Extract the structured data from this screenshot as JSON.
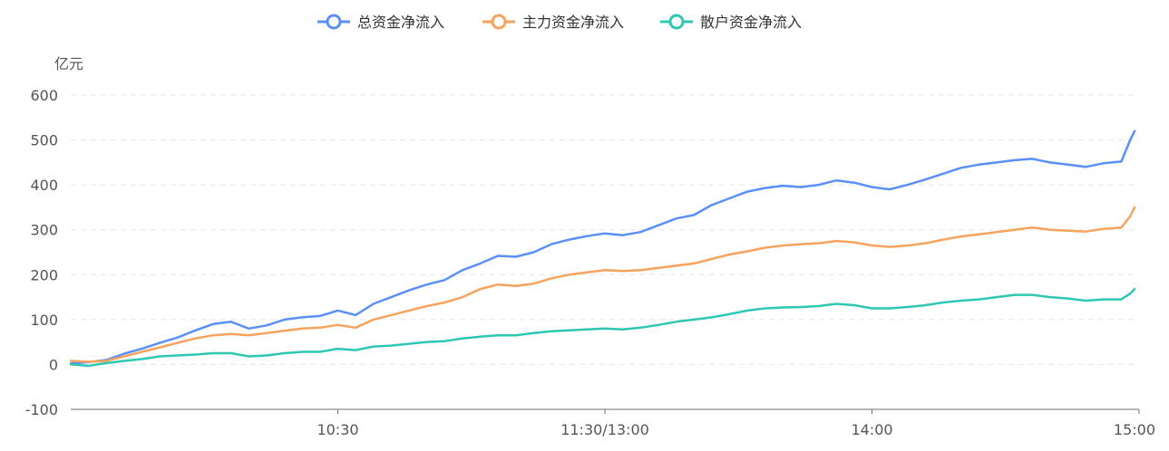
{
  "chart_data": {
    "type": "line",
    "y_unit_label": "亿元",
    "y_ticks": [
      600,
      500,
      400,
      300,
      200,
      100,
      0,
      -100
    ],
    "ylim": [
      -100,
      600
    ],
    "x_ticks": [
      "10:30",
      "11:30/13:00",
      "14:00",
      "15:00"
    ],
    "x_tick_minutes": [
      60,
      120,
      180,
      240
    ],
    "x_range_minutes": [
      0,
      240
    ],
    "grid": "horizontal-dashed",
    "legend_position": "top-center",
    "series": [
      {
        "name": "总资金净流入",
        "color": "#5b8ff9",
        "points": [
          [
            0,
            2
          ],
          [
            4,
            5
          ],
          [
            8,
            10
          ],
          [
            12,
            24
          ],
          [
            16,
            35
          ],
          [
            20,
            48
          ],
          [
            24,
            60
          ],
          [
            28,
            76
          ],
          [
            32,
            90
          ],
          [
            36,
            95
          ],
          [
            40,
            80
          ],
          [
            44,
            87
          ],
          [
            48,
            100
          ],
          [
            52,
            105
          ],
          [
            56,
            108
          ],
          [
            60,
            120
          ],
          [
            64,
            110
          ],
          [
            68,
            135
          ],
          [
            72,
            150
          ],
          [
            76,
            165
          ],
          [
            80,
            178
          ],
          [
            84,
            188
          ],
          [
            88,
            210
          ],
          [
            92,
            225
          ],
          [
            96,
            242
          ],
          [
            100,
            240
          ],
          [
            104,
            250
          ],
          [
            108,
            268
          ],
          [
            112,
            278
          ],
          [
            116,
            286
          ],
          [
            120,
            292
          ],
          [
            124,
            288
          ],
          [
            128,
            295
          ],
          [
            132,
            310
          ],
          [
            136,
            325
          ],
          [
            140,
            333
          ],
          [
            144,
            355
          ],
          [
            148,
            370
          ],
          [
            152,
            385
          ],
          [
            156,
            393
          ],
          [
            160,
            398
          ],
          [
            164,
            395
          ],
          [
            168,
            400
          ],
          [
            172,
            410
          ],
          [
            176,
            405
          ],
          [
            180,
            395
          ],
          [
            184,
            390
          ],
          [
            188,
            400
          ],
          [
            192,
            412
          ],
          [
            196,
            425
          ],
          [
            200,
            438
          ],
          [
            204,
            445
          ],
          [
            208,
            450
          ],
          [
            212,
            455
          ],
          [
            216,
            458
          ],
          [
            220,
            450
          ],
          [
            224,
            445
          ],
          [
            228,
            440
          ],
          [
            232,
            448
          ],
          [
            236,
            452
          ],
          [
            238,
            500
          ],
          [
            239,
            520
          ]
        ]
      },
      {
        "name": "主力资金净流入",
        "color": "#f7a35c",
        "points": [
          [
            0,
            8
          ],
          [
            4,
            6
          ],
          [
            8,
            8
          ],
          [
            12,
            18
          ],
          [
            16,
            28
          ],
          [
            20,
            38
          ],
          [
            24,
            48
          ],
          [
            28,
            58
          ],
          [
            32,
            65
          ],
          [
            36,
            68
          ],
          [
            40,
            65
          ],
          [
            44,
            70
          ],
          [
            48,
            75
          ],
          [
            52,
            80
          ],
          [
            56,
            82
          ],
          [
            60,
            88
          ],
          [
            64,
            82
          ],
          [
            68,
            100
          ],
          [
            72,
            110
          ],
          [
            76,
            120
          ],
          [
            80,
            130
          ],
          [
            84,
            138
          ],
          [
            88,
            150
          ],
          [
            92,
            168
          ],
          [
            96,
            178
          ],
          [
            100,
            175
          ],
          [
            104,
            180
          ],
          [
            108,
            192
          ],
          [
            112,
            200
          ],
          [
            116,
            205
          ],
          [
            120,
            210
          ],
          [
            124,
            208
          ],
          [
            128,
            210
          ],
          [
            132,
            215
          ],
          [
            136,
            220
          ],
          [
            140,
            225
          ],
          [
            144,
            235
          ],
          [
            148,
            245
          ],
          [
            152,
            252
          ],
          [
            156,
            260
          ],
          [
            160,
            265
          ],
          [
            164,
            268
          ],
          [
            168,
            270
          ],
          [
            172,
            275
          ],
          [
            176,
            272
          ],
          [
            180,
            265
          ],
          [
            184,
            262
          ],
          [
            188,
            265
          ],
          [
            192,
            270
          ],
          [
            196,
            278
          ],
          [
            200,
            285
          ],
          [
            204,
            290
          ],
          [
            208,
            295
          ],
          [
            212,
            300
          ],
          [
            216,
            305
          ],
          [
            220,
            300
          ],
          [
            224,
            298
          ],
          [
            228,
            296
          ],
          [
            232,
            302
          ],
          [
            236,
            305
          ],
          [
            238,
            330
          ],
          [
            239,
            350
          ]
        ]
      },
      {
        "name": "散户资金净流入",
        "color": "#2ec7b4",
        "points": [
          [
            0,
            0
          ],
          [
            4,
            -3
          ],
          [
            8,
            3
          ],
          [
            12,
            8
          ],
          [
            16,
            12
          ],
          [
            20,
            18
          ],
          [
            24,
            20
          ],
          [
            28,
            22
          ],
          [
            32,
            25
          ],
          [
            36,
            25
          ],
          [
            40,
            18
          ],
          [
            44,
            20
          ],
          [
            48,
            25
          ],
          [
            52,
            28
          ],
          [
            56,
            28
          ],
          [
            60,
            35
          ],
          [
            64,
            32
          ],
          [
            68,
            40
          ],
          [
            72,
            42
          ],
          [
            76,
            46
          ],
          [
            80,
            50
          ],
          [
            84,
            52
          ],
          [
            88,
            58
          ],
          [
            92,
            62
          ],
          [
            96,
            65
          ],
          [
            100,
            65
          ],
          [
            104,
            70
          ],
          [
            108,
            74
          ],
          [
            112,
            76
          ],
          [
            116,
            78
          ],
          [
            120,
            80
          ],
          [
            124,
            78
          ],
          [
            128,
            82
          ],
          [
            132,
            88
          ],
          [
            136,
            95
          ],
          [
            140,
            100
          ],
          [
            144,
            105
          ],
          [
            148,
            112
          ],
          [
            152,
            120
          ],
          [
            156,
            125
          ],
          [
            160,
            127
          ],
          [
            164,
            128
          ],
          [
            168,
            130
          ],
          [
            172,
            135
          ],
          [
            176,
            132
          ],
          [
            180,
            125
          ],
          [
            184,
            125
          ],
          [
            188,
            128
          ],
          [
            192,
            132
          ],
          [
            196,
            138
          ],
          [
            200,
            142
          ],
          [
            204,
            145
          ],
          [
            208,
            150
          ],
          [
            212,
            155
          ],
          [
            216,
            155
          ],
          [
            220,
            150
          ],
          [
            224,
            147
          ],
          [
            228,
            142
          ],
          [
            232,
            145
          ],
          [
            236,
            145
          ],
          [
            238,
            158
          ],
          [
            239,
            168
          ]
        ]
      }
    ]
  }
}
